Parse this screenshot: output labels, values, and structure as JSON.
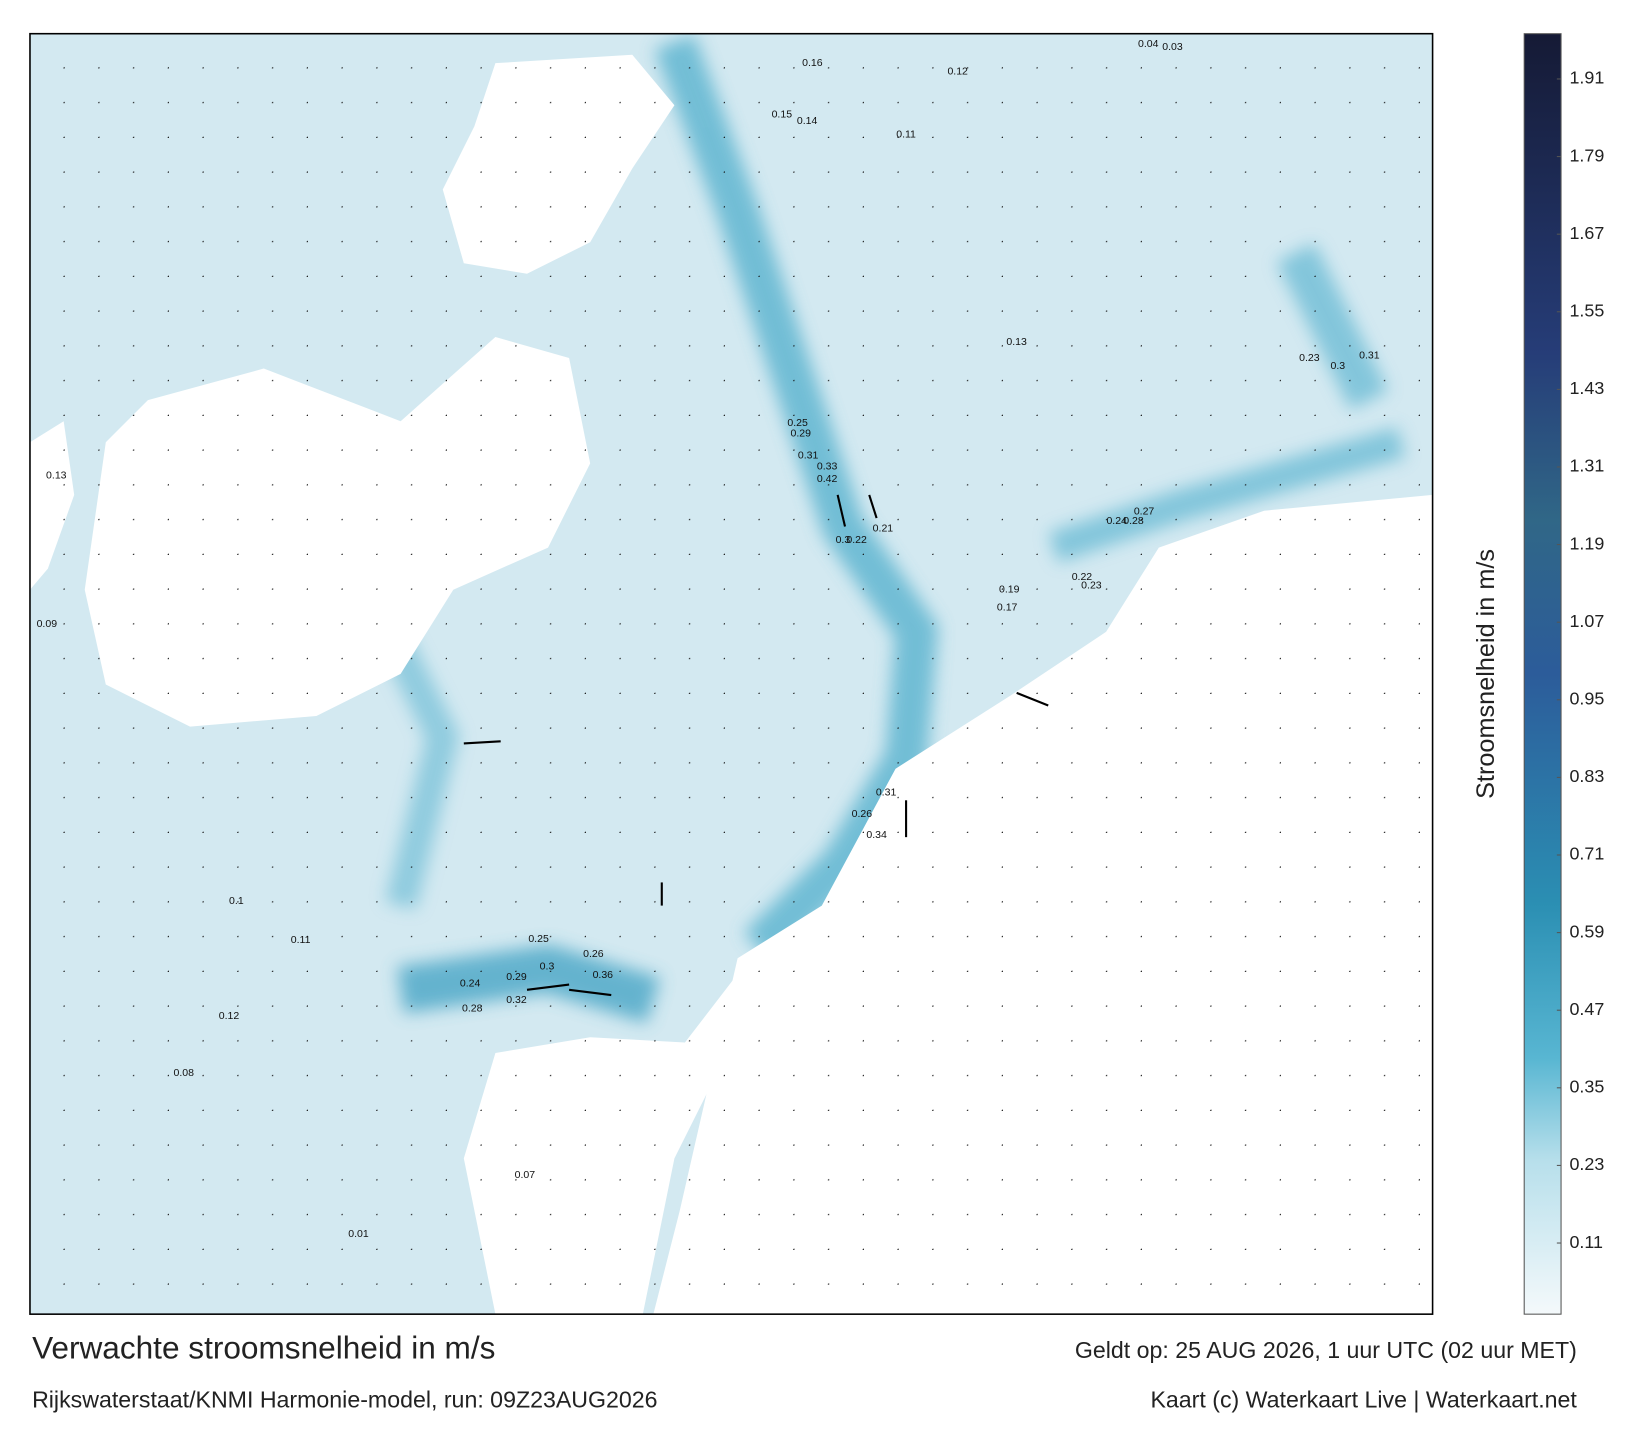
{
  "map": {
    "title": "Verwachte stroomsnelheid in m/s",
    "subtitle": "Rijkswaterstaat/KNMI Harmonie-model, run: 09Z23AUG2026",
    "valid": "Geldt op: 25 AUG 2026, 1 uur UTC (02 uur MET)",
    "credit": "Kaart (c) Waterkaart Live | Waterkaart.net",
    "labels": [
      0.42,
      0.33,
      0.31,
      0.29,
      0.25,
      0.3,
      0.22,
      0.21,
      0.36,
      0.32,
      0.29,
      0.3,
      0.26,
      0.25,
      0.24,
      0.28,
      0.34,
      0.31,
      0.26,
      0.27,
      0.28,
      0.24,
      0.16,
      0.12,
      0.15,
      0.14,
      0.11,
      0.13,
      0.19,
      0.17,
      0.22,
      0.23,
      0.09,
      0.13,
      0.1,
      0.11,
      0.12,
      0.08,
      0.07,
      0.01,
      0.04,
      0.03,
      0.23,
      0.3,
      0.31
    ],
    "colorbar": {
      "label": "Stroomsnelheid in m/s",
      "lim": [
        0,
        1.98
      ],
      "ticks": [
        0.11,
        0.23,
        0.35,
        0.47,
        0.59,
        0.71,
        0.83,
        0.95,
        1.07,
        1.19,
        1.31,
        1.43,
        1.55,
        1.67,
        1.79,
        1.91
      ]
    }
  }
}
